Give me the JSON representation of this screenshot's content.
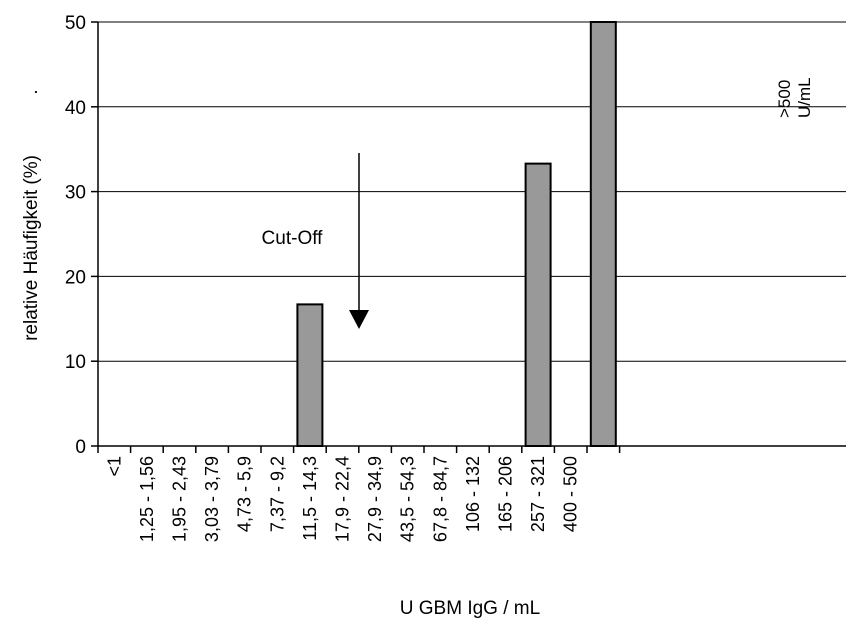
{
  "chart_data": {
    "type": "bar",
    "title": "",
    "xlabel": "U  GBM IgG / mL",
    "ylabel": "relative Häufigkeit (%)",
    "ylabel_mark": ".",
    "ylim": [
      0,
      50
    ],
    "yticks": [
      "0",
      "10",
      "20",
      "30",
      "40",
      "50"
    ],
    "grid": true,
    "legend": "none",
    "bar_color": "#999999",
    "categories": [
      "<1",
      "1,25 - 1,56",
      "1,95 - 2,43",
      "3,03 - 3,79",
      "4,73 - 5,9",
      "7,37 - 9,2",
      "11,5 - 14,3",
      "17,9 - 22,4",
      "27,9 - 34,9",
      "43,5 - 54,3",
      "67,8 - 84,7",
      "106 - 132",
      "165 - 206",
      "257 - 321",
      "400 - 500",
      ">500 U/mL"
    ],
    "values": [
      0,
      0,
      0,
      0,
      0,
      0,
      16.7,
      0,
      0,
      0,
      0,
      0,
      0,
      33.3,
      0,
      50
    ],
    "annotations": {
      "cutoff_label": "Cut-Off",
      "overflow_label_line1": ">500",
      "overflow_label_line2": "U/mL"
    }
  }
}
